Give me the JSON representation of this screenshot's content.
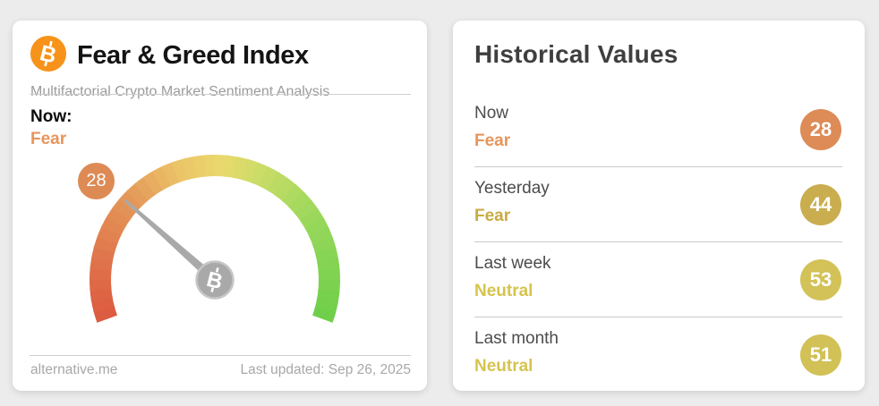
{
  "page": {
    "background_color": "#ececec"
  },
  "left_card": {
    "title": "Fear & Greed Index",
    "subtitle": "Multifactorial Crypto Market Sentiment Analysis",
    "now_label": "Now:",
    "now_classification": "Fear",
    "now_classification_color": "#e8955c",
    "source": "alternative.me",
    "last_updated": "Last updated: Sep 26, 2025",
    "icons": {
      "bitcoin": "bitcoin-circle-icon"
    },
    "brand_orange": "#f7931a"
  },
  "chart_data": {
    "type": "gauge",
    "title": "Fear & Greed Index",
    "value": 28,
    "min": 0,
    "max": 100,
    "classification": "Fear",
    "start_angle_deg": 200,
    "end_angle_deg": -20,
    "band_color_stops": [
      {
        "t": 0.0,
        "color": "#dc5940"
      },
      {
        "t": 0.12,
        "color": "#df7049"
      },
      {
        "t": 0.3,
        "color": "#e49a5a"
      },
      {
        "t": 0.42,
        "color": "#ecc368"
      },
      {
        "t": 0.52,
        "color": "#e9d96d"
      },
      {
        "t": 0.62,
        "color": "#c6dc66"
      },
      {
        "t": 0.78,
        "color": "#96d75a"
      },
      {
        "t": 1.0,
        "color": "#6ecf49"
      }
    ],
    "needle_color": "#a9a9a9",
    "hub_color": "#a9a9a9",
    "hub_ring_color": "#c6c6c6",
    "hub_symbol": "bitcoin-icon",
    "value_badge_color": "#dd8a55"
  },
  "right_card": {
    "title": "Historical Values",
    "rows": [
      {
        "label": "Now",
        "classification": "Fear",
        "value": 28,
        "badge_color": "#dd8b57",
        "classification_color": "#e8955c"
      },
      {
        "label": "Yesterday",
        "classification": "Fear",
        "value": 44,
        "badge_color": "#c9ad4f",
        "classification_color": "#c9ab44"
      },
      {
        "label": "Last week",
        "classification": "Neutral",
        "value": 53,
        "badge_color": "#d3c258",
        "classification_color": "#d6c44d"
      },
      {
        "label": "Last month",
        "classification": "Neutral",
        "value": 51,
        "badge_color": "#d1c156",
        "classification_color": "#d6c44d"
      }
    ]
  }
}
